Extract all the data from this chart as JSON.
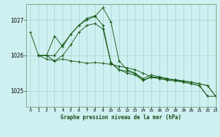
{
  "title": "Graphe pression niveau de la mer (hPa)",
  "bg_color": "#cff0f0",
  "grid_color": "#aad4d4",
  "line_color": "#1a5c1a",
  "xlim": [
    -0.5,
    23
  ],
  "ylim": [
    1024.55,
    1027.45
  ],
  "yticks": [
    1025,
    1026,
    1027
  ],
  "xticks": [
    0,
    1,
    2,
    3,
    4,
    5,
    6,
    7,
    8,
    9,
    10,
    11,
    12,
    13,
    14,
    15,
    16,
    17,
    18,
    19,
    20,
    21,
    22,
    23
  ],
  "series": [
    {
      "x": [
        0,
        1,
        2,
        3,
        4,
        5,
        6,
        7,
        8,
        9,
        10,
        11,
        12,
        13,
        14,
        15,
        16,
        17,
        18,
        19,
        20,
        21,
        22,
        23
      ],
      "y": [
        1026.65,
        1026.0,
        1025.9,
        1025.85,
        1025.9,
        1025.85,
        1025.82,
        1025.78,
        1025.8,
        1025.78,
        1025.75,
        1025.7,
        1025.65,
        1025.6,
        1025.5,
        1025.4,
        1025.35,
        1025.33,
        1025.32,
        1025.28,
        1025.25,
        1025.2,
        1025.15,
        1024.85
      ]
    },
    {
      "x": [
        1,
        2,
        3,
        4,
        5,
        6,
        7,
        8,
        9,
        10,
        11,
        12,
        13,
        14,
        15,
        16,
        17,
        18,
        19,
        20,
        21,
        22,
        23
      ],
      "y": [
        1026.0,
        1026.0,
        1026.55,
        1026.25,
        1026.6,
        1026.85,
        1027.05,
        1027.12,
        1026.85,
        1025.8,
        1025.6,
        1025.55,
        1025.5,
        1025.35,
        1025.45,
        1025.4,
        1025.35,
        1025.3,
        1025.25,
        1025.2,
        1025.15,
        1024.85,
        1024.85
      ]
    },
    {
      "x": [
        1,
        2,
        3,
        4,
        5,
        6,
        7,
        8,
        9,
        10,
        11,
        12,
        13,
        14,
        15,
        16,
        17,
        18,
        19,
        20,
        21,
        22,
        23
      ],
      "y": [
        1026.0,
        1026.0,
        1026.0,
        1026.3,
        1026.6,
        1026.85,
        1027.0,
        1027.1,
        1027.35,
        1026.95,
        1025.85,
        1025.6,
        1025.5,
        1025.3,
        1025.4,
        1025.38,
        1025.35,
        1025.3,
        1025.28,
        1025.25,
        1025.2,
        1025.15,
        1024.85
      ]
    },
    {
      "x": [
        1,
        2,
        3,
        4,
        5,
        6,
        7,
        8,
        9,
        10,
        11,
        12,
        13,
        14,
        15,
        16,
        17,
        18,
        19,
        20,
        21,
        22,
        23
      ],
      "y": [
        1026.0,
        1026.0,
        1025.85,
        1026.0,
        1026.3,
        1026.65,
        1026.85,
        1026.9,
        1026.75,
        1025.78,
        1025.6,
        1025.5,
        1025.45,
        1025.3,
        1025.38,
        1025.35,
        1025.3,
        1025.28,
        1025.25,
        1025.2,
        1025.15,
        1024.85,
        1024.85
      ]
    }
  ]
}
